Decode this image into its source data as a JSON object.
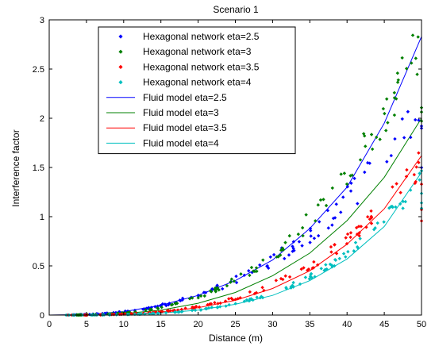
{
  "chart_data": {
    "type": "scatter",
    "title": "Scenario 1",
    "xlabel": "Distance (m)",
    "ylabel": "Interference factor",
    "xlim": [
      0,
      50
    ],
    "ylim": [
      0,
      3
    ],
    "xticks": [
      0,
      5,
      10,
      15,
      20,
      25,
      30,
      35,
      40,
      45,
      50
    ],
    "yticks": [
      0,
      0.5,
      1,
      1.5,
      2,
      2.5,
      3
    ],
    "grid": false,
    "legend_position": "top-left-center",
    "series": [
      {
        "name": "Hexagonal network eta=2.5",
        "kind": "markers",
        "color": "#0000ff",
        "coef": 0.0001,
        "exponent": 2.54,
        "noise_amp": 0.12,
        "seed": 11
      },
      {
        "name": "Hexagonal network eta=3",
        "kind": "markers",
        "color": "#008000",
        "coef": 2.38e-05,
        "exponent": 2.985,
        "noise_amp": 0.1,
        "seed": 23
      },
      {
        "name": "Hexagonal network eta=3.5",
        "kind": "markers",
        "color": "#ff0000",
        "coef": 6.4e-06,
        "exponent": 3.17,
        "noise_amp": 0.09,
        "seed": 37
      },
      {
        "name": "Hexagonal network eta=4",
        "kind": "markers",
        "color": "#00bfbf",
        "coef": 1.2e-06,
        "exponent": 3.57,
        "noise_amp": 0.08,
        "seed": 53
      },
      {
        "name": "Fluid model eta=2.5",
        "kind": "line",
        "color": "#0000ff",
        "x": [
          0,
          5,
          10,
          15,
          20,
          25,
          30,
          35,
          40,
          45,
          50
        ],
        "y": [
          0,
          0.006,
          0.035,
          0.1,
          0.2,
          0.35,
          0.56,
          0.88,
          1.3,
          1.95,
          2.83
        ]
      },
      {
        "name": "Fluid model eta=3",
        "kind": "line",
        "color": "#008000",
        "x": [
          0,
          5,
          10,
          15,
          20,
          25,
          30,
          35,
          40,
          45,
          50
        ],
        "y": [
          0,
          0.002,
          0.015,
          0.05,
          0.12,
          0.23,
          0.4,
          0.63,
          0.96,
          1.4,
          2.0
        ]
      },
      {
        "name": "Fluid model eta=3.5",
        "kind": "line",
        "color": "#ff0000",
        "x": [
          0,
          5,
          10,
          15,
          20,
          25,
          30,
          35,
          40,
          45,
          50
        ],
        "y": [
          0,
          0.0008,
          0.008,
          0.03,
          0.075,
          0.15,
          0.27,
          0.45,
          0.72,
          1.08,
          1.62
        ]
      },
      {
        "name": "Fluid model eta=4",
        "kind": "line",
        "color": "#00bfbf",
        "x": [
          0,
          5,
          10,
          15,
          20,
          25,
          30,
          35,
          40,
          45,
          50
        ],
        "y": [
          0,
          0.0004,
          0.005,
          0.02,
          0.05,
          0.11,
          0.2,
          0.35,
          0.57,
          0.9,
          1.45
        ]
      }
    ]
  }
}
